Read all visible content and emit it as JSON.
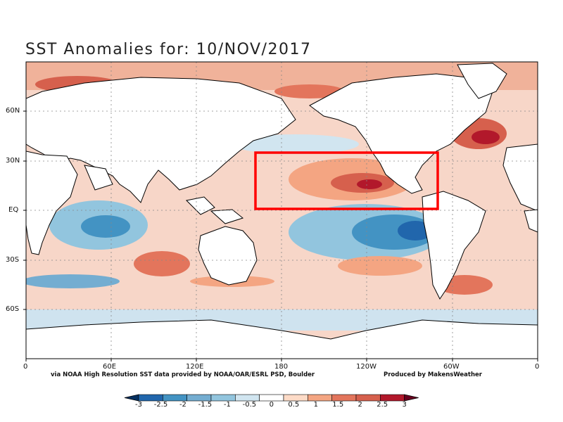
{
  "title": "SST Anomalies for: 10/NOV/2017",
  "map": {
    "lat_labels": [
      "60N",
      "30N",
      "EQ",
      "30S",
      "60S"
    ],
    "lon_labels": [
      "0",
      "60E",
      "120E",
      "180",
      "120W",
      "60W",
      "0"
    ],
    "highlight_color": "#ff0000"
  },
  "credits": {
    "source": "via NOAA High Resolution SST data provided by NOAA/OAR/ESRL PSD, Boulder",
    "producer": "Produced by MakensWeather"
  },
  "colorbar": {
    "labels": [
      "-3",
      "-2.5",
      "-2",
      "-1.5",
      "-1",
      "-0.5",
      "0",
      "0.5",
      "1",
      "1.5",
      "2",
      "2.5",
      "3"
    ],
    "colors": [
      "#053061",
      "#2166ac",
      "#4393c3",
      "#74add1",
      "#92c5de",
      "#d1e5f0",
      "#ffffff",
      "#fddbc7",
      "#f4a582",
      "#e3755c",
      "#d6604d",
      "#b2182b",
      "#67001f"
    ]
  }
}
